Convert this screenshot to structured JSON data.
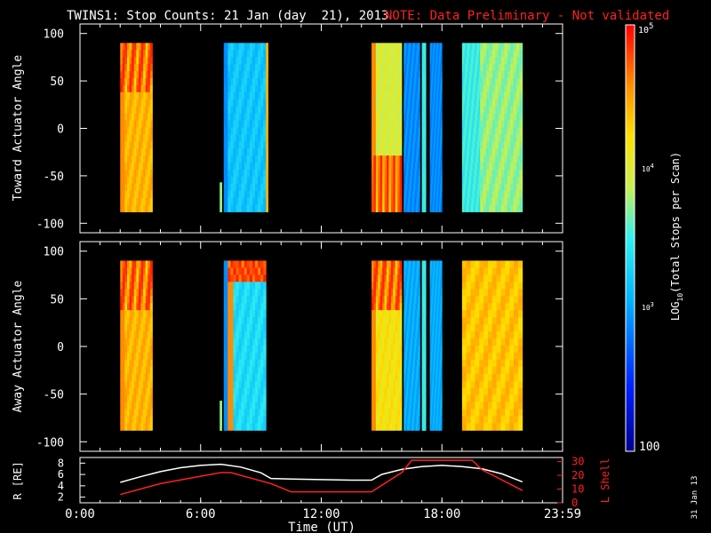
{
  "header": {
    "title": "TWINS1: Stop Counts: 21 Jan (day  21), 2013",
    "note": "NOTE: Data Preliminary - Not validated",
    "note_color": "#ff2020",
    "stamp": "31 Jan 13"
  },
  "chart_data": [
    {
      "type": "heatmap",
      "panel": "top",
      "ylabel": "Toward Actuator Angle",
      "ylim": [
        -110,
        110
      ],
      "yticks": [
        "100",
        "50",
        "0",
        "-50",
        "-100"
      ],
      "x_range_hours": [
        0,
        24
      ],
      "angle_range": [
        -88,
        90
      ],
      "bands": [
        {
          "start": 2.0,
          "end": 3.6,
          "level": 0.8,
          "pattern": "oval-top"
        },
        {
          "start": 6.95,
          "end": 7.05,
          "level": 0.58,
          "partial_top": -57
        },
        {
          "start": 7.15,
          "end": 7.35,
          "level": 0.3
        },
        {
          "start": 7.35,
          "end": 9.25,
          "level": 0.4
        },
        {
          "start": 9.25,
          "end": 9.35,
          "level": 0.8
        },
        {
          "start": 14.5,
          "end": 16.0,
          "level": 0.65,
          "pattern": "oval-bottom"
        },
        {
          "start": 16.1,
          "end": 16.9,
          "level": 0.3
        },
        {
          "start": 17.0,
          "end": 17.2,
          "level": 0.5
        },
        {
          "start": 17.4,
          "end": 18.0,
          "level": 0.3
        },
        {
          "start": 19.0,
          "end": 19.9,
          "level": 0.5
        },
        {
          "start": 19.9,
          "end": 22.0,
          "level": 0.58
        }
      ]
    },
    {
      "type": "heatmap",
      "panel": "bottom",
      "ylabel": "Away Actuator Angle",
      "ylim": [
        -110,
        110
      ],
      "yticks": [
        "100",
        "50",
        "0",
        "-50",
        "-100"
      ],
      "x_range_hours": [
        0,
        24
      ],
      "angle_range": [
        -88,
        90
      ],
      "bands": [
        {
          "start": 2.0,
          "end": 3.6,
          "level": 0.8,
          "pattern": "oval-top"
        },
        {
          "start": 6.95,
          "end": 7.05,
          "level": 0.58,
          "partial_top": -57
        },
        {
          "start": 7.15,
          "end": 7.35,
          "level": 0.3
        },
        {
          "start": 7.35,
          "end": 9.25,
          "level": 0.45,
          "pattern": "hot-top"
        },
        {
          "start": 14.5,
          "end": 16.0,
          "level": 0.72,
          "pattern": "oval-top"
        },
        {
          "start": 16.1,
          "end": 16.9,
          "level": 0.35
        },
        {
          "start": 17.0,
          "end": 17.2,
          "level": 0.5
        },
        {
          "start": 17.4,
          "end": 18.0,
          "level": 0.35
        },
        {
          "start": 19.0,
          "end": 22.0,
          "level": 0.78
        }
      ]
    },
    {
      "type": "line",
      "panel": "orbit",
      "ylabel": "R [RE]",
      "y2label": "L Shell",
      "yticks_left": [
        "8",
        "6",
        "4",
        "2"
      ],
      "yticks_right": [
        "30",
        "20",
        "10",
        "0"
      ],
      "xticks": [
        "0:00",
        "6:00",
        "12:00",
        "18:00",
        "23:59"
      ],
      "xlabel": "Time (UT)",
      "series": [
        {
          "name": "R [RE]",
          "axis": "left",
          "color": "#ffffff",
          "x": [
            2.0,
            3.0,
            4.0,
            5.0,
            6.0,
            7.0,
            8.0,
            9.0,
            9.5,
            10.5,
            12.0,
            13.5,
            14.5,
            15.0,
            16.0,
            17.0,
            18.0,
            19.0,
            20.0,
            21.0,
            22.0
          ],
          "y": [
            4.6,
            5.6,
            6.5,
            7.2,
            7.6,
            7.8,
            7.3,
            6.3,
            5.3,
            5.2,
            5.1,
            5.0,
            5.0,
            6.0,
            6.9,
            7.4,
            7.6,
            7.4,
            7.0,
            6.1,
            4.7
          ]
        },
        {
          "name": "L Shell",
          "axis": "right",
          "color": "#ff2020",
          "x": [
            2.0,
            3.0,
            4.0,
            7.0,
            7.5,
            9.5,
            10.5,
            12.0,
            14.5,
            16.0,
            16.5,
            19.5,
            20.0,
            22.0
          ],
          "y": [
            6,
            10,
            14,
            22,
            22,
            14,
            8,
            8,
            8,
            22,
            31,
            31,
            24,
            9
          ]
        }
      ]
    }
  ],
  "colorbar": {
    "label": "LOG10(Total Stops per Scan)",
    "label_main": "LOG",
    "label_sub": "10",
    "label_rest": "(Total Stops per Scan)",
    "tick_top": "10",
    "tick_top_exp": "5",
    "tick_mid": "10",
    "tick_mid_exp": "4",
    "tick_low": "10",
    "tick_low_exp": "3",
    "tick_bottom": "100"
  }
}
